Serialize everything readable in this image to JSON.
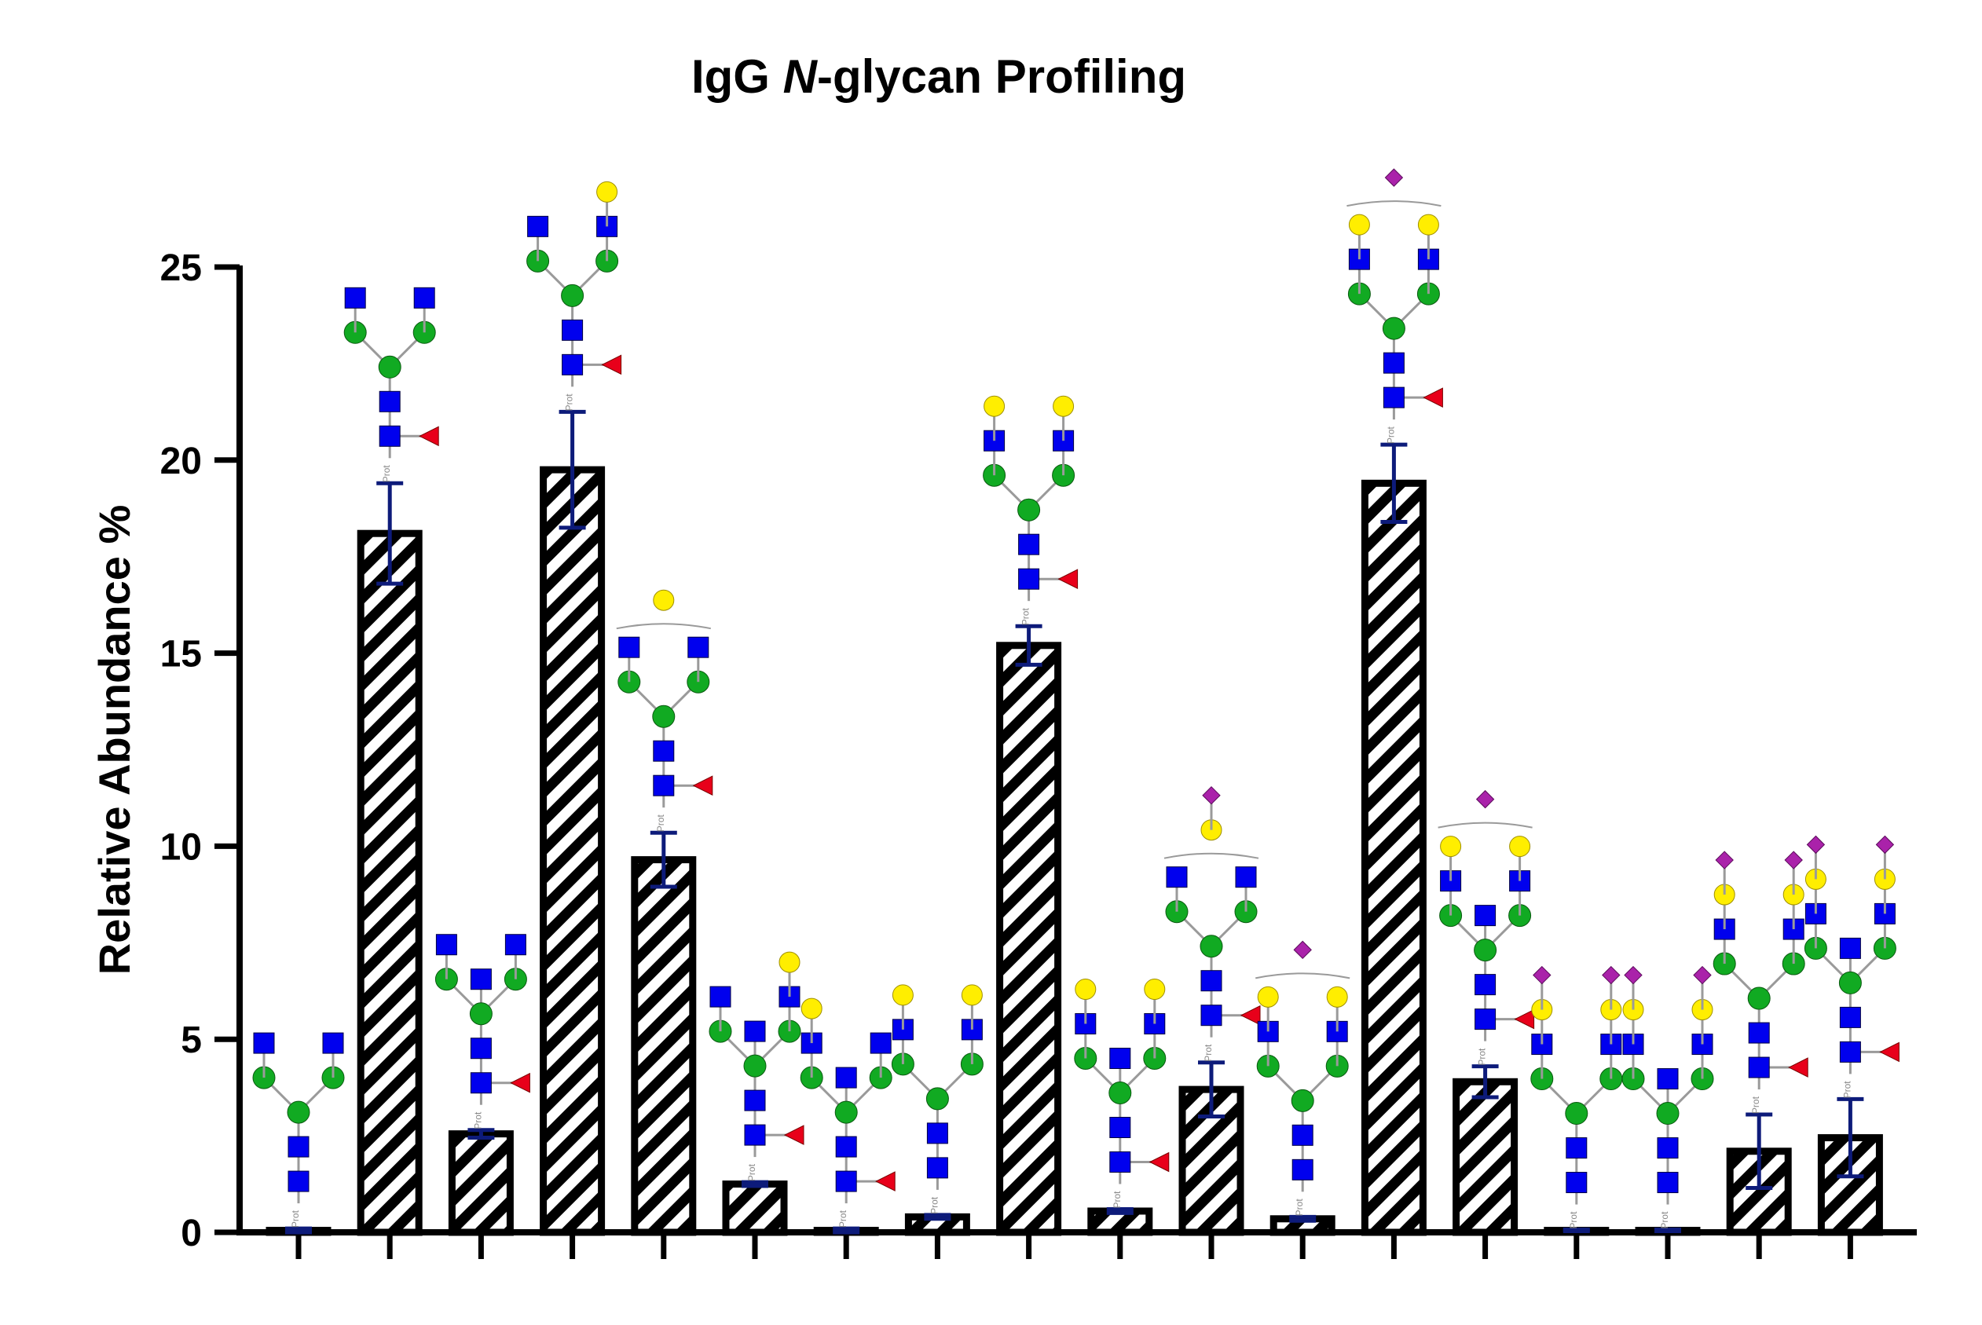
{
  "chart_data": {
    "type": "bar",
    "title": {
      "prefix": "IgG ",
      "italic": "N",
      "suffix": "-glycan Profiling"
    },
    "xlabel": "",
    "ylabel": "Relative  Abundance %",
    "ylim": [
      0,
      25
    ],
    "yticks": [
      "0",
      "5",
      "10",
      "15",
      "20",
      "25"
    ],
    "grid": false,
    "legend": "none",
    "bar_pattern": "diagonal-hatch",
    "colors": {
      "bar_fill": "#ffffff",
      "bar_stroke": "#000000",
      "hatch": "#000000",
      "error_bar": "#0d1b7a",
      "glcnac": "#0000ee",
      "mannose": "#11aa22",
      "galactose": "#ffee00",
      "fucose": "#e8001a",
      "sialic": "#aa22aa"
    },
    "categories": [
      "",
      "",
      "",
      "",
      "",
      "",
      "",
      "",
      "",
      "",
      "",
      "",
      "",
      "",
      "",
      "",
      "",
      ""
    ],
    "series": [
      {
        "values": [
          0.05,
          18.1,
          2.55,
          19.75,
          9.65,
          1.25,
          0.05,
          0.4,
          15.2,
          0.55,
          3.7,
          0.35,
          19.4,
          3.9,
          0.05,
          0.05,
          2.1,
          2.45
        ],
        "error": [
          0.05,
          1.3,
          0.1,
          1.5,
          0.7,
          0.05,
          0.05,
          0.05,
          0.5,
          0.05,
          0.7,
          0.05,
          1.0,
          0.4,
          0.02,
          0.02,
          0.95,
          1.0
        ]
      }
    ],
    "glycans": [
      {
        "core_fucose": false,
        "bisect": false,
        "branches": [
          [
            "glcnac"
          ],
          [
            "glcnac"
          ]
        ]
      },
      {
        "core_fucose": true,
        "bisect": false,
        "branches": [
          [
            "glcnac"
          ],
          [
            "glcnac"
          ]
        ]
      },
      {
        "core_fucose": true,
        "bisect": true,
        "branches": [
          [
            "glcnac"
          ],
          [
            "glcnac"
          ]
        ]
      },
      {
        "core_fucose": true,
        "bisect": false,
        "branches": [
          [
            "glcnac"
          ],
          [
            "glcnac",
            "galactose"
          ]
        ]
      },
      {
        "core_fucose": true,
        "bisect": false,
        "branches": [
          [
            "glcnac"
          ],
          [
            "glcnac"
          ]
        ],
        "floating": [
          "galactose"
        ]
      },
      {
        "core_fucose": true,
        "bisect": true,
        "branches": [
          [
            "glcnac"
          ],
          [
            "glcnac",
            "galactose"
          ]
        ]
      },
      {
        "core_fucose": true,
        "bisect": true,
        "branches": [
          [
            "glcnac",
            "galactose"
          ],
          [
            "glcnac"
          ]
        ]
      },
      {
        "core_fucose": false,
        "bisect": false,
        "branches": [
          [
            "glcnac",
            "galactose"
          ],
          [
            "glcnac",
            "galactose"
          ]
        ]
      },
      {
        "core_fucose": true,
        "bisect": false,
        "branches": [
          [
            "glcnac",
            "galactose"
          ],
          [
            "glcnac",
            "galactose"
          ]
        ]
      },
      {
        "core_fucose": true,
        "bisect": true,
        "branches": [
          [
            "glcnac",
            "galactose"
          ],
          [
            "glcnac",
            "galactose"
          ]
        ]
      },
      {
        "core_fucose": true,
        "bisect": false,
        "branches": [
          [
            "glcnac"
          ],
          [
            "glcnac"
          ]
        ],
        "floating": [
          "galactose",
          "sialic"
        ]
      },
      {
        "core_fucose": false,
        "bisect": false,
        "branches": [
          [
            "glcnac",
            "galactose"
          ],
          [
            "glcnac",
            "galactose"
          ]
        ],
        "floating": [
          "sialic"
        ]
      },
      {
        "core_fucose": true,
        "bisect": false,
        "branches": [
          [
            "glcnac",
            "galactose"
          ],
          [
            "glcnac",
            "galactose"
          ]
        ],
        "floating": [
          "sialic"
        ]
      },
      {
        "core_fucose": true,
        "bisect": true,
        "branches": [
          [
            "glcnac",
            "galactose"
          ],
          [
            "glcnac",
            "galactose"
          ]
        ],
        "floating": [
          "sialic"
        ]
      },
      {
        "core_fucose": false,
        "bisect": false,
        "branches": [
          [
            "glcnac",
            "galactose",
            "sialic"
          ],
          [
            "glcnac",
            "galactose",
            "sialic"
          ]
        ]
      },
      {
        "core_fucose": false,
        "bisect": true,
        "branches": [
          [
            "glcnac",
            "galactose",
            "sialic"
          ],
          [
            "glcnac",
            "galactose",
            "sialic"
          ]
        ]
      },
      {
        "core_fucose": true,
        "bisect": false,
        "branches": [
          [
            "glcnac",
            "galactose",
            "sialic"
          ],
          [
            "glcnac",
            "galactose",
            "sialic"
          ]
        ]
      },
      {
        "core_fucose": true,
        "bisect": true,
        "branches": [
          [
            "glcnac",
            "galactose",
            "sialic"
          ],
          [
            "glcnac",
            "galactose",
            "sialic"
          ]
        ]
      }
    ],
    "glycan_base_label": "Prot"
  }
}
